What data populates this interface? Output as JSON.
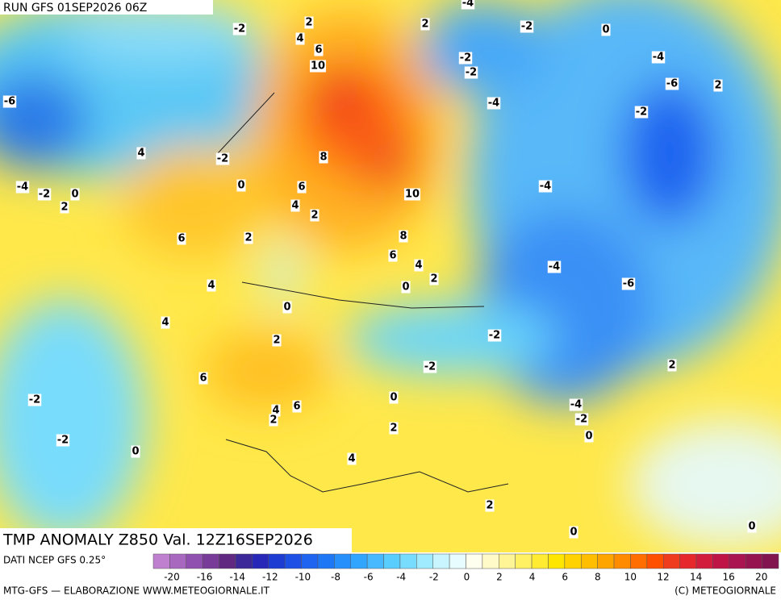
{
  "header": {
    "run": "RUN GFS 01SEP2026 06Z"
  },
  "map": {
    "title": "TMP ANOMALY Z850 Val. 12Z16SEP2026",
    "contour_labels": [
      "2",
      "4",
      "-2",
      "6",
      "10",
      "2",
      "-4",
      "-2",
      "0",
      "-2",
      "-2",
      "-4",
      "-6",
      "2",
      "-4",
      "-2",
      "-6",
      "4",
      "-2",
      "8",
      "0",
      "6",
      "-4",
      "-2",
      "0",
      "2",
      "-4",
      "10",
      "4",
      "2",
      "6",
      "2",
      "8",
      "6",
      "4",
      "-4",
      "2",
      "-6",
      "4",
      "0",
      "0",
      "4",
      "-2",
      "2",
      "-2",
      "2",
      "6",
      "-2",
      "0",
      "-4",
      "4",
      "6",
      "-2",
      "2",
      "2",
      "0",
      "-2",
      "0",
      "4",
      "2",
      "0",
      "0"
    ]
  },
  "legend": {
    "source": "DATI NCEP GFS 0.25°",
    "colors": [
      "#c080d0",
      "#a868c0",
      "#9050b0",
      "#783c98",
      "#602880",
      "#3c2898",
      "#2828b8",
      "#1e3cd2",
      "#1e50e6",
      "#1e64f0",
      "#1e78f5",
      "#2890fa",
      "#32a5ff",
      "#46b9ff",
      "#5acdff",
      "#78dcff",
      "#a0ebff",
      "#c8f5ff",
      "#e6fcff",
      "#fffff0",
      "#fffac8",
      "#fff596",
      "#fff064",
      "#ffeb32",
      "#ffe600",
      "#ffd200",
      "#ffbe00",
      "#ffa500",
      "#ff8c00",
      "#ff6e00",
      "#ff5000",
      "#f03c1e",
      "#e6282d",
      "#d21e3c",
      "#be1446",
      "#aa1450",
      "#961450",
      "#821450"
    ],
    "labels": [
      "-20",
      "-16",
      "-14",
      "-12",
      "-10",
      "-8",
      "-6",
      "-4",
      "-2",
      "0",
      "2",
      "4",
      "6",
      "8",
      "10",
      "12",
      "14",
      "16",
      "20"
    ]
  },
  "footer": {
    "left": "MTG-GFS — ELABORAZIONE WWW.METEOGIORNALE.IT",
    "right": "(C) METEOGIORNALE"
  }
}
